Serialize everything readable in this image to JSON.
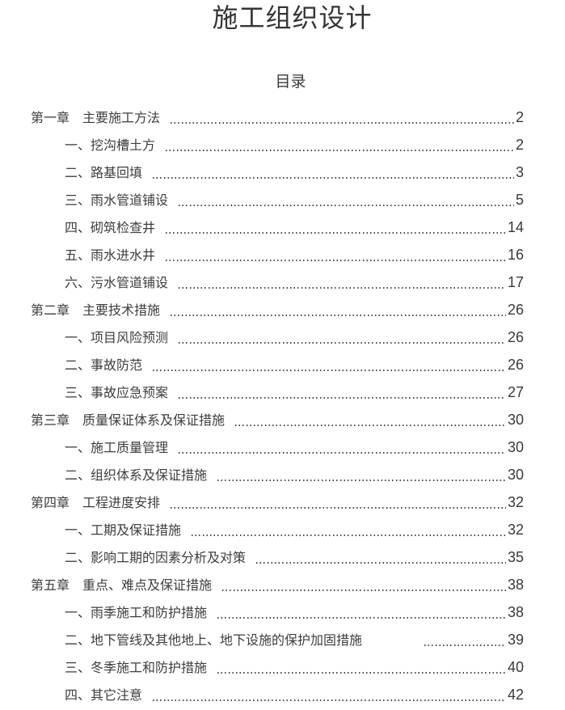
{
  "document": {
    "title": "施工组织设计",
    "toc_heading": "目录"
  },
  "toc": {
    "entries": [
      {
        "level": 1,
        "label": "第一章　主要施工方法",
        "page": "2"
      },
      {
        "level": 2,
        "label": "一、挖沟槽土方",
        "page": "2"
      },
      {
        "level": 2,
        "label": "二、路基回填",
        "page": "3"
      },
      {
        "level": 2,
        "label": "三、雨水管道铺设",
        "page": "5"
      },
      {
        "level": 2,
        "label": "四、砌筑检查井",
        "page": "14"
      },
      {
        "level": 2,
        "label": "五、雨水进水井",
        "page": "16"
      },
      {
        "level": 2,
        "label": "六、污水管道铺设",
        "page": "17"
      },
      {
        "level": 1,
        "label": "第二章　主要技术措施",
        "page": "26"
      },
      {
        "level": 2,
        "label": "一、项目风险预测",
        "page": "26"
      },
      {
        "level": 2,
        "label": "二、事故防范",
        "page": "26"
      },
      {
        "level": 2,
        "label": "三、事故应急预案",
        "page": "27"
      },
      {
        "level": 1,
        "label": "第三章　质量保证体系及保证措施",
        "page": "30"
      },
      {
        "level": 2,
        "label": "一、施工质量管理",
        "page": "30"
      },
      {
        "level": 2,
        "label": "二、组织体系及保证措施",
        "page": "30"
      },
      {
        "level": 1,
        "label": "第四章　工程进度安排",
        "page": "32"
      },
      {
        "level": 2,
        "label": "一、工期及保证措施",
        "page": "32"
      },
      {
        "level": 2,
        "label": "二、影响工期的因素分析及对策",
        "page": "35"
      },
      {
        "level": 1,
        "label": "第五章　重点、难点及保证措施",
        "page": "38"
      },
      {
        "level": 2,
        "label": "一、雨季施工和防护措施",
        "page": "38"
      },
      {
        "level": 2,
        "label": "二、地下管线及其他地上、地下设施的保护加固措施　　　　",
        "page": "39"
      },
      {
        "level": 2,
        "label": "三、冬季施工和防护措施",
        "page": "40"
      },
      {
        "level": 2,
        "label": "四、其它注意",
        "page": "42"
      }
    ]
  },
  "colors": {
    "text": "#3d3d3d",
    "background": "#ffffff",
    "leader_dots": "#4b4b4b"
  }
}
